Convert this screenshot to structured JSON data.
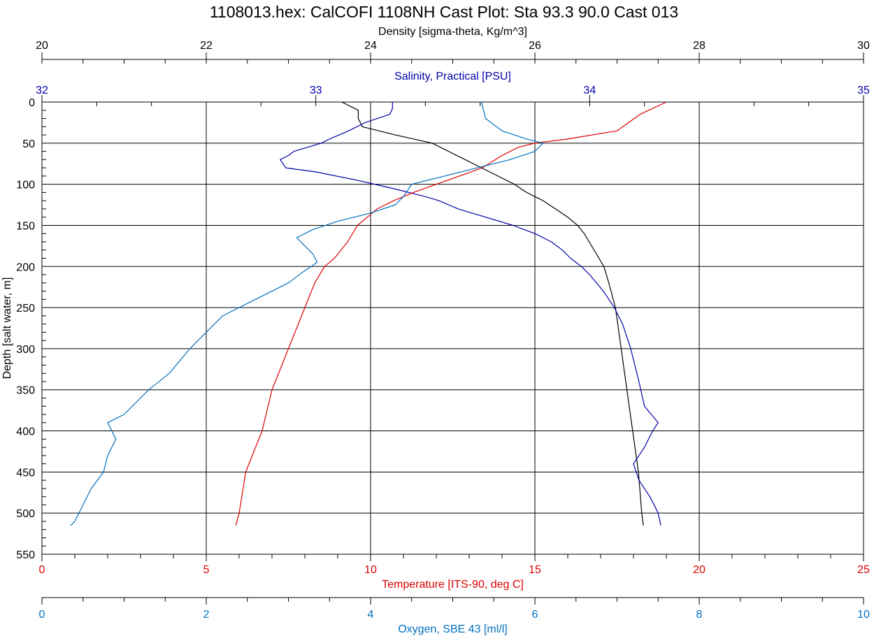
{
  "chart_data": {
    "type": "line",
    "title": "1108013.hex: CalCOFI 1108NH Cast Plot: Sta 93.3 90.0 Cast 013",
    "grid": true,
    "y_axis": {
      "label": "Depth [salt water, m]",
      "range": [
        0,
        550
      ],
      "inverted": true,
      "ticks": [
        "0",
        "50",
        "100",
        "150",
        "200",
        "250",
        "300",
        "350",
        "400",
        "450",
        "500",
        "550"
      ]
    },
    "x_axes": [
      {
        "id": "density",
        "label": "Density [sigma-theta, Kg/m^3]",
        "position": "top",
        "range": [
          20,
          30
        ],
        "color": "#000000",
        "ticks": [
          "20",
          "22",
          "24",
          "26",
          "28",
          "30"
        ]
      },
      {
        "id": "salinity",
        "label": "Salinity, Practical [PSU]",
        "position": "top",
        "range": [
          32,
          35
        ],
        "color": "#0000aa",
        "ticks": [
          "32",
          "33",
          "34",
          "35"
        ]
      },
      {
        "id": "temperature",
        "label": "Temperature [ITS-90, deg C]",
        "position": "bottom",
        "range": [
          0,
          25
        ],
        "color": "#dd0000",
        "ticks": [
          "0",
          "5",
          "10",
          "15",
          "20",
          "25"
        ]
      },
      {
        "id": "oxygen",
        "label": "Oxygen, SBE 43 [ml/l]",
        "position": "bottom",
        "range": [
          0,
          10
        ],
        "color": "#0070c0",
        "ticks": [
          "0",
          "2",
          "4",
          "6",
          "8",
          "10"
        ]
      }
    ],
    "series": [
      {
        "axis": "density",
        "color": "#000000",
        "points": [
          [
            0,
            23.65
          ],
          [
            10,
            23.85
          ],
          [
            20,
            23.85
          ],
          [
            30,
            23.9
          ],
          [
            40,
            24.3
          ],
          [
            50,
            24.75
          ],
          [
            60,
            24.95
          ],
          [
            70,
            25.15
          ],
          [
            80,
            25.35
          ],
          [
            90,
            25.55
          ],
          [
            100,
            25.75
          ],
          [
            110,
            25.9
          ],
          [
            120,
            26.1
          ],
          [
            130,
            26.25
          ],
          [
            140,
            26.4
          ],
          [
            150,
            26.52
          ],
          [
            160,
            26.6
          ],
          [
            170,
            26.66
          ],
          [
            180,
            26.72
          ],
          [
            190,
            26.78
          ],
          [
            200,
            26.84
          ],
          [
            220,
            26.9
          ],
          [
            250,
            26.98
          ],
          [
            300,
            27.05
          ],
          [
            350,
            27.12
          ],
          [
            400,
            27.19
          ],
          [
            450,
            27.26
          ],
          [
            500,
            27.3
          ],
          [
            515,
            27.32
          ]
        ]
      },
      {
        "axis": "salinity",
        "color": "#0000aa",
        "points": [
          [
            0,
            33.28
          ],
          [
            8,
            33.28
          ],
          [
            15,
            33.27
          ],
          [
            25,
            33.18
          ],
          [
            35,
            33.12
          ],
          [
            45,
            33.05
          ],
          [
            50,
            33.02
          ],
          [
            55,
            32.97
          ],
          [
            60,
            32.92
          ],
          [
            65,
            32.9
          ],
          [
            70,
            32.87
          ],
          [
            80,
            32.89
          ],
          [
            85,
            33.0
          ],
          [
            95,
            33.15
          ],
          [
            105,
            33.28
          ],
          [
            115,
            33.4
          ],
          [
            120,
            33.45
          ],
          [
            130,
            33.52
          ],
          [
            140,
            33.62
          ],
          [
            150,
            33.72
          ],
          [
            160,
            33.8
          ],
          [
            170,
            33.86
          ],
          [
            180,
            33.9
          ],
          [
            190,
            33.93
          ],
          [
            200,
            33.97
          ],
          [
            210,
            34.0
          ],
          [
            230,
            34.05
          ],
          [
            250,
            34.09
          ],
          [
            270,
            34.12
          ],
          [
            300,
            34.15
          ],
          [
            340,
            34.18
          ],
          [
            370,
            34.2
          ],
          [
            390,
            34.25
          ],
          [
            400,
            34.23
          ],
          [
            420,
            34.2
          ],
          [
            440,
            34.16
          ],
          [
            460,
            34.18
          ],
          [
            480,
            34.22
          ],
          [
            500,
            34.25
          ],
          [
            515,
            34.26
          ]
        ]
      },
      {
        "axis": "temperature",
        "color": "#dd0000",
        "points": [
          [
            0,
            19.0
          ],
          [
            15,
            18.2
          ],
          [
            35,
            17.5
          ],
          [
            45,
            16.0
          ],
          [
            50,
            15.0
          ],
          [
            55,
            14.5
          ],
          [
            65,
            14.0
          ],
          [
            80,
            13.4
          ],
          [
            90,
            12.7
          ],
          [
            100,
            12.0
          ],
          [
            110,
            11.3
          ],
          [
            120,
            10.7
          ],
          [
            130,
            10.2
          ],
          [
            140,
            9.9
          ],
          [
            150,
            9.6
          ],
          [
            170,
            9.3
          ],
          [
            190,
            8.9
          ],
          [
            200,
            8.6
          ],
          [
            220,
            8.3
          ],
          [
            250,
            8.0
          ],
          [
            300,
            7.5
          ],
          [
            350,
            7.0
          ],
          [
            400,
            6.7
          ],
          [
            450,
            6.2
          ],
          [
            500,
            6.0
          ],
          [
            515,
            5.9
          ]
        ]
      },
      {
        "axis": "oxygen",
        "color": "#0070c0",
        "points": [
          [
            0,
            5.35
          ],
          [
            20,
            5.4
          ],
          [
            35,
            5.6
          ],
          [
            45,
            5.9
          ],
          [
            50,
            6.1
          ],
          [
            60,
            6.0
          ],
          [
            70,
            5.7
          ],
          [
            80,
            5.3
          ],
          [
            90,
            4.9
          ],
          [
            100,
            4.5
          ],
          [
            115,
            4.4
          ],
          [
            125,
            4.3
          ],
          [
            135,
            4.0
          ],
          [
            145,
            3.6
          ],
          [
            155,
            3.3
          ],
          [
            165,
            3.1
          ],
          [
            175,
            3.2
          ],
          [
            185,
            3.3
          ],
          [
            195,
            3.35
          ],
          [
            205,
            3.2
          ],
          [
            220,
            3.0
          ],
          [
            240,
            2.6
          ],
          [
            260,
            2.2
          ],
          [
            280,
            2.0
          ],
          [
            300,
            1.8
          ],
          [
            330,
            1.55
          ],
          [
            350,
            1.3
          ],
          [
            380,
            1.0
          ],
          [
            390,
            0.8
          ],
          [
            410,
            0.9
          ],
          [
            430,
            0.8
          ],
          [
            450,
            0.75
          ],
          [
            470,
            0.6
          ],
          [
            490,
            0.5
          ],
          [
            510,
            0.4
          ],
          [
            515,
            0.35
          ]
        ]
      }
    ]
  }
}
